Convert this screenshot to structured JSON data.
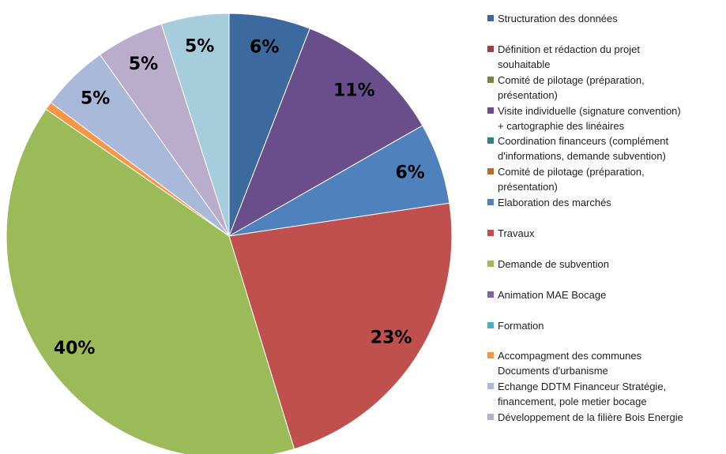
{
  "chart_data": {
    "type": "pie",
    "categories": [
      "Structuration des données",
      "Définition et rédaction du projet\nsouhaitable",
      "Comité de pilotage (préparation,\nprésentation)",
      "Visite individuelle (signature convention)\n+ cartographie des linéaires",
      "Coordination financeurs (complément\nd'informations, demande subvention)",
      "Comité de pilotage (préparation,\nprésentation)",
      "Elaboration des marchés",
      "Travaux",
      "Demande de subvention",
      "Animation MAE Bocage",
      "Formation",
      "Accompagment des communes\nDocuments d'urbanisme",
      "Echange DDTM Financeur Stratégie,\nfinancement, pole metier bocage",
      "Développement de la filière Bois Energie",
      null
    ],
    "values": [
      6,
      0,
      0,
      11,
      0,
      0,
      6,
      23,
      40,
      0,
      0,
      0.6,
      5,
      5,
      5
    ],
    "value_labels": [
      "6%",
      null,
      null,
      "11%",
      null,
      null,
      "6%",
      "23%",
      "40%",
      null,
      null,
      null,
      "5%",
      "5%",
      "5%"
    ],
    "colors": [
      "#3D6A9E",
      "#A0403D",
      "#71893F",
      "#6A4E8C",
      "#357D91",
      "#B66D31",
      "#4F81BD",
      "#C0504D",
      "#9BBB59",
      "#8064A2",
      "#4BACC6",
      "#F79646",
      "#A8B9D9",
      "#BAADCB",
      "#A5CDDC"
    ]
  }
}
